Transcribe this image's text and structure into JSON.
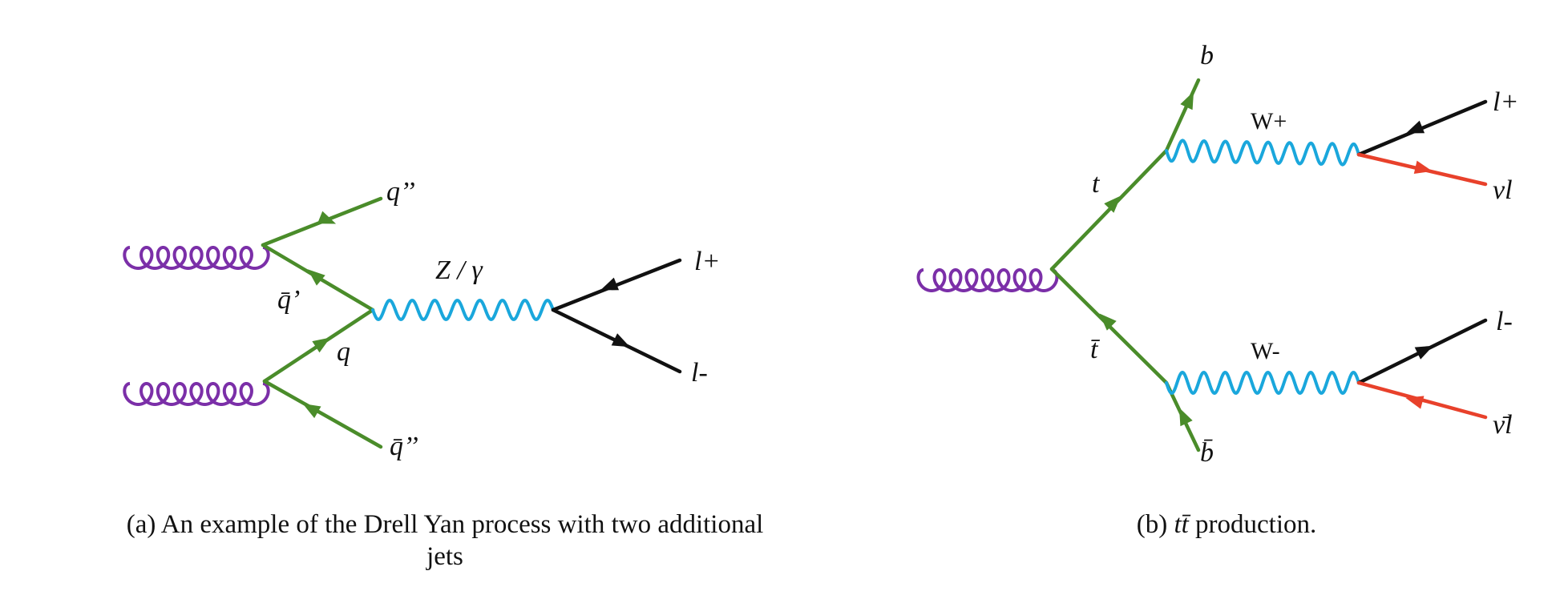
{
  "colors": {
    "gluon": "#7b2fa8",
    "quark": "#4a8c2a",
    "boson": "#1aa7dc",
    "lepton": "#111111",
    "neutrino": "#e8412b"
  },
  "diagram_a": {
    "labels": {
      "q_dprime": "q’’",
      "qbar_prime": "q̄’",
      "q": "q",
      "qbar_dprime": "q̄’’",
      "boson": "Z / γ",
      "l_plus": "l+",
      "l_minus": "l-"
    },
    "caption_line1": "(a) An example of the Drell Yan process with two additional",
    "caption_line2": "jets"
  },
  "diagram_b": {
    "labels": {
      "b": "b",
      "w_plus": "W+",
      "l_plus": "l+",
      "nu": "νl",
      "t": "t",
      "tbar": "t̄",
      "w_minus": "W-",
      "l_minus": "l-",
      "nubar": "ν̄l",
      "bbar": "b̄"
    },
    "caption_prefix": "(b) ",
    "caption_math": "tt̄",
    "caption_suffix": " production."
  }
}
